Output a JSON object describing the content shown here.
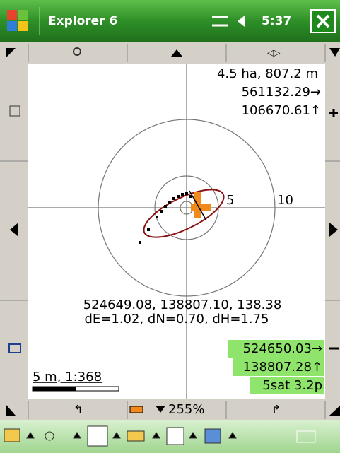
{
  "title_bar": {
    "app": "Explorer 6",
    "time": "5:37"
  },
  "map": {
    "area_info": "4.5 ha, 807.2 m",
    "easting": "561132.29→",
    "northing": "106670.61↑",
    "ring_labels": [
      "5",
      "10"
    ],
    "position": "524649.08, 138807.10, 138.38",
    "deltas": "dE=1.02, dN=0.70, dH=1.75",
    "gps_easting": "524650.03→",
    "gps_northing": "138807.28↑",
    "gps_status": "5sat 3.2p",
    "scale": "5 m, 1:368"
  },
  "toolbar": {
    "zoom": "255%"
  }
}
